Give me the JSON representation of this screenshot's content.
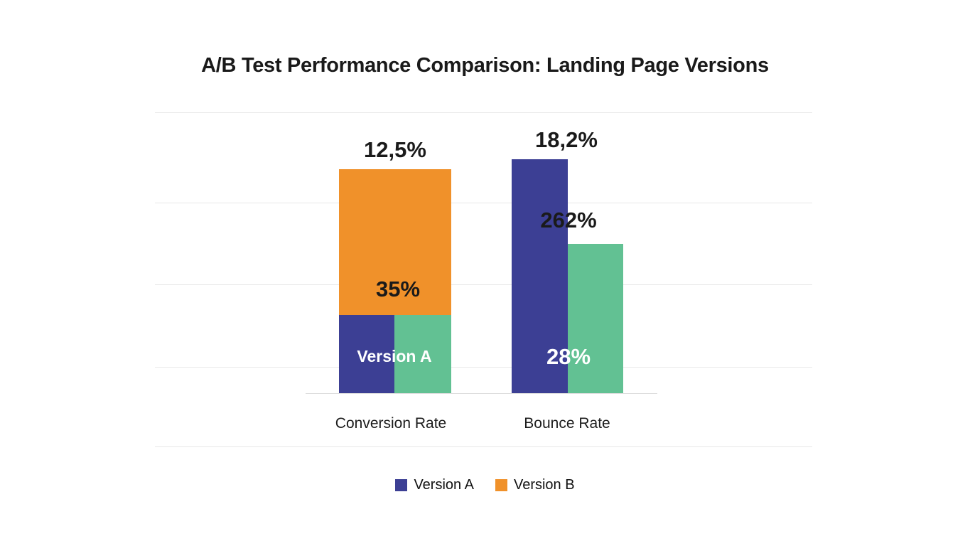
{
  "chart_data": {
    "type": "bar",
    "title": "A/B Test Performance Comparison: Landing Page Versions",
    "categories": [
      "Conversion Rate",
      "Bounce Rate"
    ],
    "legend": [
      {
        "label": "Version A",
        "color": "#3c3f94"
      },
      {
        "label": "Version B",
        "color": "#f0912a"
      }
    ],
    "colors": {
      "version_a": "#3c3f94",
      "version_b": "#f0912a",
      "accent_green": "#62c193",
      "gridline": "#e8e8e8",
      "text": "#1a1a1a"
    },
    "axis": {
      "grid": true,
      "numeric_ticks_visible": false
    },
    "groups": [
      {
        "key": "conversion",
        "category": "Conversion Rate",
        "labels": {
          "top": "12,5%",
          "mid": "35%",
          "inner": "Version A"
        },
        "bars": [
          {
            "name": "conversion-version-b-bar",
            "series": "Version B",
            "color": "#f0912a",
            "left_pct": 0,
            "width_pct": 100,
            "height_pct": 79.7,
            "value_label": "12,5%"
          },
          {
            "name": "conversion-version-a-bar",
            "series": "Version A",
            "color": "#3c3f94",
            "left_pct": 0,
            "width_pct": 49.5,
            "height_pct": 27.8,
            "value_label": "35%"
          },
          {
            "name": "conversion-green-bar",
            "series": "",
            "color": "#62c193",
            "left_pct": 49.5,
            "width_pct": 50.5,
            "height_pct": 27.8,
            "value_label": ""
          }
        ]
      },
      {
        "key": "bounce",
        "category": "Bounce Rate",
        "labels": {
          "top": "18,2%",
          "mid": "262%",
          "inner": "28%"
        },
        "bars": [
          {
            "name": "bounce-version-a-bar",
            "series": "Version A",
            "color": "#3c3f94",
            "left_pct": 0,
            "width_pct": 50,
            "height_pct": 83.3,
            "value_label": "18,2%"
          },
          {
            "name": "bounce-green-bar",
            "series": "",
            "color": "#62c193",
            "left_pct": 50,
            "width_pct": 50,
            "height_pct": 53.2,
            "value_label": "262%"
          }
        ]
      }
    ]
  }
}
